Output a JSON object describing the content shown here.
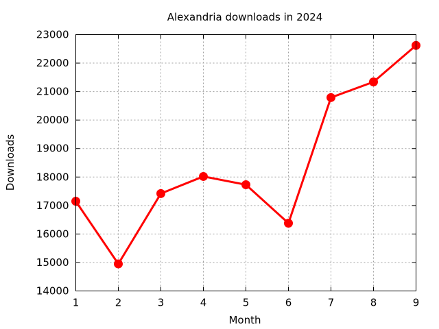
{
  "chart_data": {
    "type": "line",
    "title": "Alexandria downloads in 2024",
    "xlabel": "Month",
    "ylabel": "Downloads",
    "x": [
      1,
      2,
      3,
      4,
      5,
      6,
      7,
      8,
      9
    ],
    "series": [
      {
        "values": [
          17150,
          14950,
          17420,
          18020,
          17730,
          16380,
          20790,
          21340,
          22620
        ],
        "color": "#ff0000",
        "marker": "circle"
      }
    ],
    "xlim": [
      1,
      9
    ],
    "ylim": [
      14000,
      23000
    ],
    "xticks": [
      1,
      2,
      3,
      4,
      5,
      6,
      7,
      8,
      9
    ],
    "yticks": [
      14000,
      15000,
      16000,
      17000,
      18000,
      19000,
      20000,
      21000,
      22000,
      23000
    ],
    "grid": true
  }
}
